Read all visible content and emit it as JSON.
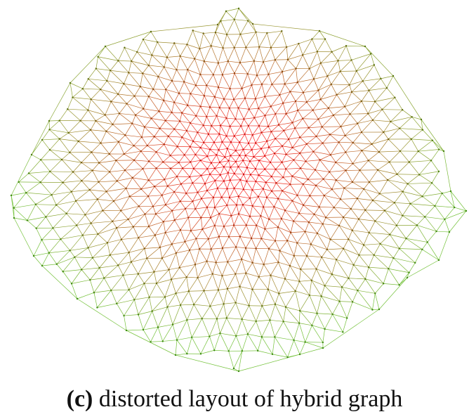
{
  "figure": {
    "caption_label": "(c)",
    "caption_text": " distorted layout of hybrid graph"
  },
  "colors": {
    "center": "#ff2020",
    "periphery": "#74c23a",
    "node_center": "#cc1010",
    "node_periphery": "#3d8a10"
  }
}
